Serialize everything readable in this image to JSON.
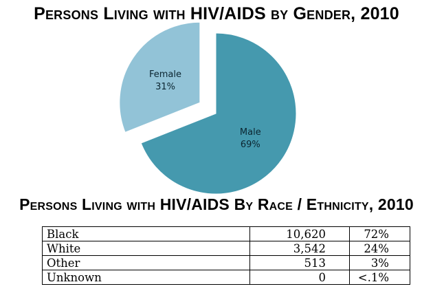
{
  "gender_chart": {
    "title": "Persons Living with HIV/AIDS by Gender, 2010"
  },
  "race_table": {
    "title": "Persons Living with HIV/AIDS By Race / Ethnicity, 2010",
    "rows": [
      {
        "race": "Black",
        "count": "10,620",
        "percent": "72%"
      },
      {
        "race": "White",
        "count": "3,542",
        "percent": "24%"
      },
      {
        "race": "Other",
        "count": "513",
        "percent": "3%"
      },
      {
        "race": "Unknown",
        "count": "0",
        "percent": "<.1%"
      }
    ]
  },
  "chart_data": {
    "type": "pie",
    "title": "Persons Living with HIV/AIDS by Gender, 2010",
    "slices": [
      {
        "label": "Male",
        "value": 69,
        "value_label": "69%",
        "color": "#4599ae",
        "exploded": false
      },
      {
        "label": "Female",
        "value": 31,
        "value_label": "31%",
        "color": "#92c3d7",
        "exploded": true
      }
    ],
    "colors": {
      "male": "#4599ae",
      "female": "#92c3d7"
    }
  }
}
